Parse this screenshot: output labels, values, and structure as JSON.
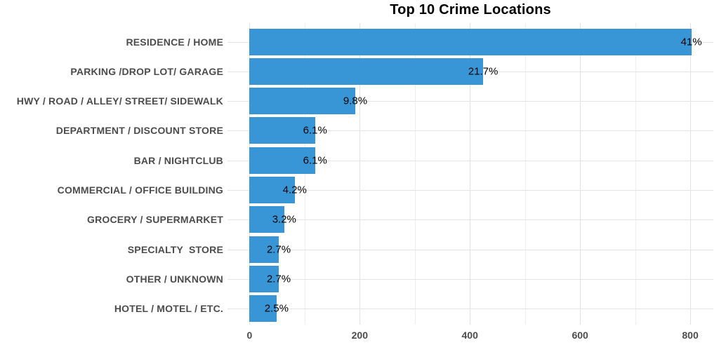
{
  "title": "Top 10 Crime Locations",
  "colors": {
    "bar": "#3896d7",
    "axis_text": "#4c4c4c",
    "value_text": "#000000",
    "title_text": "#000000",
    "grid_major": "#e2e2e2",
    "grid_minor": "#eeeeee",
    "grid_horizontal": "#e4e4e4",
    "background": "#ffffff"
  },
  "chart_data": {
    "type": "bar",
    "orientation": "horizontal",
    "title": "Top 10 Crime Locations",
    "xlabel": "",
    "ylabel": "",
    "grid": "on",
    "legend": "none",
    "categories": [
      "RESIDENCE / HOME",
      "PARKING /DROP LOT/ GARAGE",
      "HWY / ROAD / ALLEY/ STREET/ SIDEWALK",
      "DEPARTMENT / DISCOUNT STORE",
      "BAR / NIGHTCLUB",
      "COMMERCIAL / OFFICE BUILDING",
      "GROCERY / SUPERMARKET",
      "SPECIALTY  STORE",
      "OTHER / UNKNOWN",
      "HOTEL / MOTEL / ETC."
    ],
    "values": [
      802,
      424,
      192,
      119,
      119,
      82,
      63,
      53,
      53,
      49
    ],
    "value_labels": [
      "41%",
      "21.7%",
      "9.8%",
      "6.1%",
      "6.1%",
      "4.2%",
      "3.2%",
      "2.7%",
      "2.7%",
      "2.5%"
    ],
    "x_ticks": [
      0,
      200,
      400,
      600,
      800
    ],
    "x_minor_ticks": [
      100,
      300,
      500,
      700
    ],
    "xlim": [
      -40,
      842
    ]
  }
}
